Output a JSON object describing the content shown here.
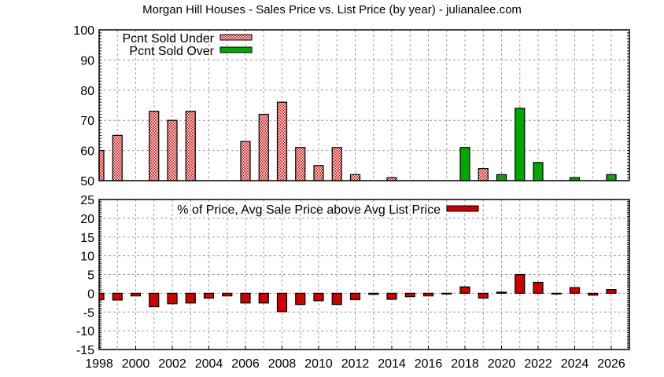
{
  "title": "Morgan Hill Houses - Sales Price vs. List Price (by year) - julianalee.com",
  "colors": {
    "under": "#cc0000",
    "over": "#00a800",
    "pct_bar": "#cc0000",
    "grid": "#a0a0a0"
  },
  "chart_data": [
    {
      "type": "bar",
      "title": "Morgan Hill Houses - Sales Price vs. List Price (by year) - julianalee.com",
      "xlabel": "",
      "ylabel": "",
      "ylim": [
        50,
        100
      ],
      "yticks": [
        50,
        60,
        70,
        80,
        90,
        100
      ],
      "xlim": [
        1998,
        2027
      ],
      "grid": true,
      "legend_position": "top-left",
      "categories": [
        1998,
        1999,
        2000,
        2001,
        2002,
        2003,
        2004,
        2005,
        2006,
        2007,
        2008,
        2009,
        2010,
        2011,
        2012,
        2013,
        2014,
        2015,
        2016,
        2017,
        2018,
        2019,
        2020,
        2021,
        2022,
        2023,
        2024,
        2025,
        2026
      ],
      "series": [
        {
          "name": "Pcnt Sold Under",
          "style": "checkered-red",
          "values": [
            60,
            65,
            null,
            73,
            70,
            73,
            null,
            null,
            63,
            72,
            76,
            61,
            55,
            61,
            52,
            null,
            51,
            null,
            null,
            null,
            null,
            54,
            null,
            null,
            null,
            null,
            null,
            null,
            null
          ]
        },
        {
          "name": "Pcnt Sold Over",
          "style": "solid-green",
          "values": [
            null,
            null,
            null,
            null,
            null,
            null,
            null,
            null,
            null,
            null,
            null,
            null,
            null,
            null,
            null,
            null,
            null,
            null,
            null,
            null,
            61,
            null,
            52,
            74,
            56,
            null,
            51,
            null,
            52
          ]
        }
      ]
    },
    {
      "type": "bar",
      "title": "",
      "xlabel": "",
      "ylabel": "",
      "ylim": [
        -15,
        25
      ],
      "yticks": [
        -15,
        -10,
        -5,
        0,
        5,
        10,
        15,
        20,
        25
      ],
      "xlim": [
        1998,
        2027
      ],
      "xticks": [
        1998,
        2000,
        2002,
        2004,
        2006,
        2008,
        2010,
        2012,
        2014,
        2016,
        2018,
        2020,
        2022,
        2024,
        2026
      ],
      "grid": true,
      "legend_position": "top-center",
      "categories": [
        1998,
        1999,
        2000,
        2001,
        2002,
        2003,
        2004,
        2005,
        2006,
        2007,
        2008,
        2009,
        2010,
        2011,
        2012,
        2013,
        2014,
        2015,
        2016,
        2017,
        2018,
        2019,
        2020,
        2021,
        2022,
        2023,
        2024,
        2025,
        2026
      ],
      "series": [
        {
          "name": "% of Price, Avg Sale Price above Avg List Price",
          "style": "solid-red",
          "values": [
            -1.7,
            -1.8,
            -0.7,
            -3.6,
            -2.8,
            -2.6,
            -1.3,
            -0.7,
            -2.6,
            -2.6,
            -4.9,
            -3.0,
            -2.0,
            -3.0,
            -1.7,
            -0.3,
            -1.6,
            -0.9,
            -0.7,
            -0.1,
            1.7,
            -1.3,
            0.3,
            5.0,
            2.9,
            -0.1,
            1.5,
            -0.5,
            1.0
          ]
        }
      ]
    }
  ]
}
